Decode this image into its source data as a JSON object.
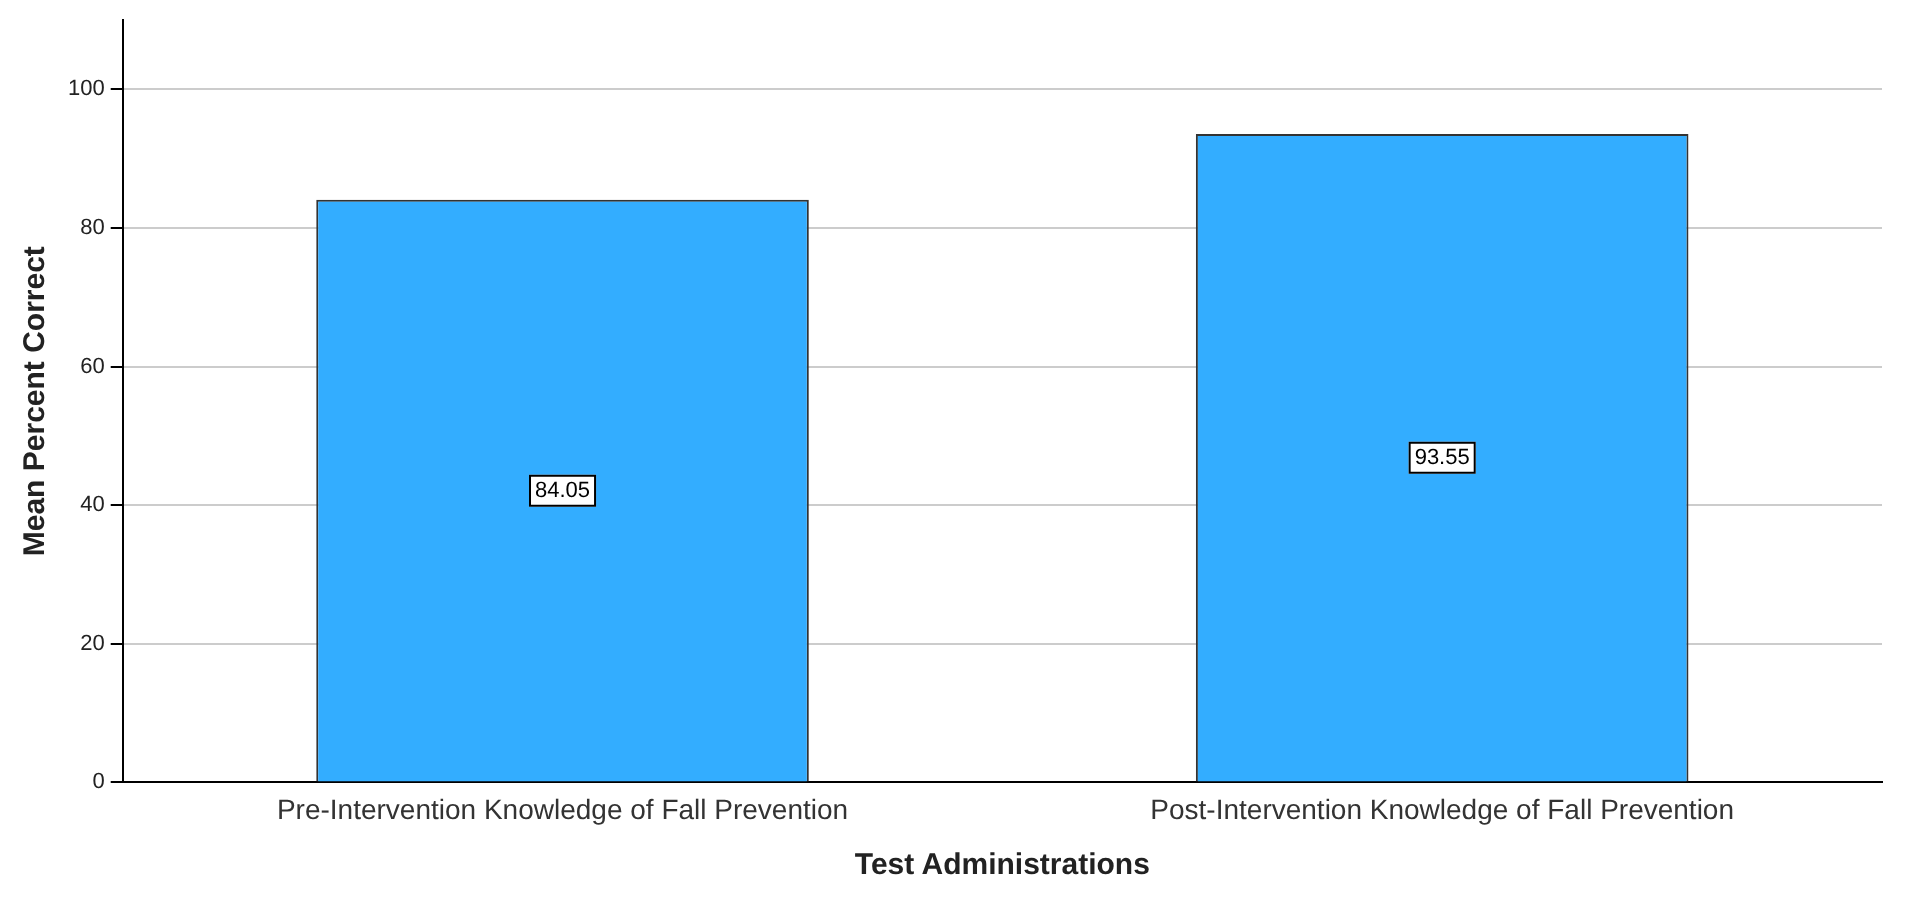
{
  "chart_data": {
    "type": "bar",
    "xlabel": "Test Administrations",
    "ylabel": "Mean Percent Correct",
    "categories": [
      "Pre-Intervention Knowledge of Fall Prevention",
      "Post-Intervention Knowledge of Fall Prevention"
    ],
    "values": [
      84.05,
      93.55
    ],
    "color": "#33adff",
    "ylim": [
      0,
      110
    ],
    "yticks": [
      0,
      20,
      40,
      60,
      80,
      100
    ],
    "grid": "y",
    "legend": false,
    "data_labels": true
  }
}
